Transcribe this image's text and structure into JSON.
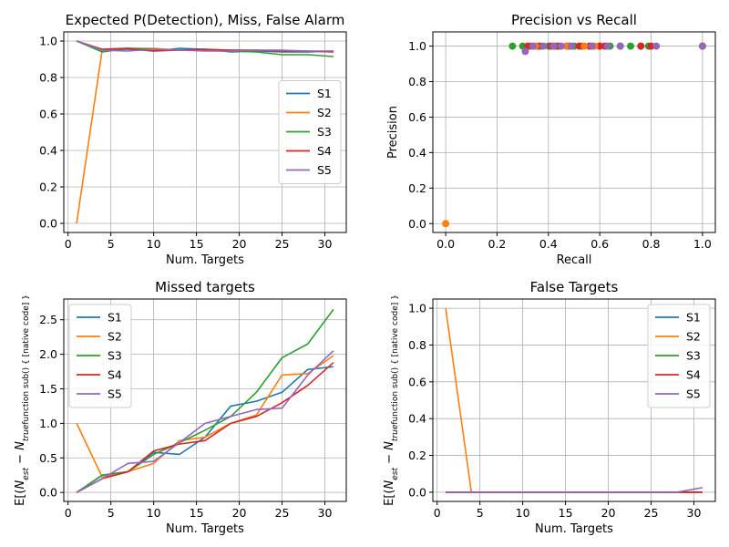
{
  "colors": {
    "S1": "#1f77b4",
    "S2": "#ff7f0e",
    "S3": "#2ca02c",
    "S4": "#d62728",
    "S5": "#9467bd",
    "grid": "#b0b0b0",
    "axis": "#000000"
  },
  "chart_data": [
    {
      "id": "detect",
      "type": "line",
      "title": "Expected P(Detection), Miss, False Alarm",
      "xlabel": "Num. Targets",
      "ylabel": "",
      "xlim": [
        -0.5,
        32.5
      ],
      "ylim": [
        -0.05,
        1.05
      ],
      "xticks": [
        0,
        5,
        10,
        15,
        20,
        25,
        30
      ],
      "yticks": [
        0.0,
        0.2,
        0.4,
        0.6,
        0.8,
        1.0
      ],
      "grid": true,
      "legend": "center right",
      "series": [
        {
          "name": "S1",
          "x": [
            1,
            4,
            7,
            10,
            13,
            16,
            19,
            22,
            25,
            28,
            31
          ],
          "y": [
            1.0,
            0.95,
            0.955,
            0.945,
            0.96,
            0.955,
            0.94,
            0.945,
            0.94,
            0.94,
            0.945
          ]
        },
        {
          "name": "S2",
          "x": [
            1,
            4,
            7,
            10,
            13,
            16,
            19,
            22,
            25,
            28,
            31
          ],
          "y": [
            0.0,
            0.955,
            0.96,
            0.96,
            0.95,
            0.95,
            0.95,
            0.95,
            0.945,
            0.945,
            0.94
          ]
        },
        {
          "name": "S3",
          "x": [
            1,
            4,
            7,
            10,
            13,
            16,
            19,
            22,
            25,
            28,
            31
          ],
          "y": [
            1.0,
            0.94,
            0.96,
            0.955,
            0.95,
            0.95,
            0.945,
            0.94,
            0.925,
            0.925,
            0.915
          ]
        },
        {
          "name": "S4",
          "x": [
            1,
            4,
            7,
            10,
            13,
            16,
            19,
            22,
            25,
            28,
            31
          ],
          "y": [
            1.0,
            0.955,
            0.96,
            0.945,
            0.95,
            0.955,
            0.95,
            0.95,
            0.945,
            0.945,
            0.94
          ]
        },
        {
          "name": "S5",
          "x": [
            1,
            4,
            7,
            10,
            13,
            16,
            19,
            22,
            25,
            28,
            31
          ],
          "y": [
            1.0,
            0.95,
            0.945,
            0.955,
            0.95,
            0.945,
            0.945,
            0.95,
            0.95,
            0.945,
            0.945
          ]
        }
      ]
    },
    {
      "id": "pr",
      "type": "scatter",
      "title": "Precision vs Recall",
      "xlabel": "Recall",
      "ylabel": "Precision",
      "xlim": [
        -0.05,
        1.05
      ],
      "ylim": [
        -0.05,
        1.08
      ],
      "xticks": [
        0.0,
        0.2,
        0.4,
        0.6,
        0.8,
        1.0
      ],
      "yticks": [
        0.0,
        0.2,
        0.4,
        0.6,
        0.8,
        1.0
      ],
      "grid": true,
      "legend": "none",
      "series": [
        {
          "name": "S3",
          "x": [
            1.0,
            0.26,
            0.3,
            0.33,
            0.37,
            0.4,
            0.43,
            0.47,
            0.5,
            0.53,
            0.57,
            0.6,
            0.64,
            0.68,
            0.72,
            0.76,
            0.79
          ],
          "y": [
            1,
            1,
            1,
            1,
            1,
            1,
            1,
            1,
            1,
            1,
            1,
            1,
            1,
            1,
            1,
            1,
            1
          ]
        },
        {
          "name": "S4",
          "x": [
            1.0,
            0.32,
            0.36,
            0.41,
            0.44,
            0.48,
            0.52,
            0.56,
            0.6,
            0.62,
            0.76,
            0.8
          ],
          "y": [
            1,
            1,
            1,
            1,
            1,
            1,
            1,
            1,
            1,
            1,
            1,
            1
          ]
        },
        {
          "name": "S2",
          "x": [
            0.0,
            1.0,
            0.35,
            0.42,
            0.47,
            0.54,
            0.58
          ],
          "y": [
            0.0,
            1,
            1,
            1,
            1,
            1,
            1
          ]
        },
        {
          "name": "S5",
          "x": [
            1.0,
            0.31,
            0.34,
            0.38,
            0.42,
            0.45,
            0.49,
            0.57,
            0.63,
            0.68,
            0.82
          ],
          "y": [
            1,
            0.97,
            1,
            1,
            1,
            1,
            1,
            1,
            1,
            1,
            1
          ]
        }
      ]
    },
    {
      "id": "missed",
      "type": "line",
      "title": "Missed targets",
      "xlabel": "Num. Targets",
      "ylabel": "E[(N_est - N_true)_-]",
      "xlim": [
        -0.5,
        32.5
      ],
      "ylim": [
        -0.13,
        2.8
      ],
      "xticks": [
        0,
        5,
        10,
        15,
        20,
        25,
        30
      ],
      "yticks": [
        0.0,
        0.5,
        1.0,
        1.5,
        2.0,
        2.5
      ],
      "ytick_labels": [
        "0.0",
        "0.5",
        "1.0",
        "1.5",
        "2.0",
        "2.5"
      ],
      "grid": true,
      "legend": "upper left",
      "series": [
        {
          "name": "S1",
          "x": [
            1,
            4,
            7,
            10,
            13,
            16,
            19,
            22,
            25,
            28,
            31
          ],
          "y": [
            0.0,
            0.25,
            0.3,
            0.58,
            0.55,
            0.8,
            1.25,
            1.32,
            1.45,
            1.78,
            1.82
          ]
        },
        {
          "name": "S2",
          "x": [
            1,
            4,
            7,
            10,
            13,
            16,
            19,
            22,
            25,
            28,
            31
          ],
          "y": [
            1.0,
            0.22,
            0.3,
            0.42,
            0.75,
            0.8,
            1.0,
            1.12,
            1.7,
            1.72,
            1.98
          ]
        },
        {
          "name": "S3",
          "x": [
            1,
            4,
            7,
            10,
            13,
            16,
            19,
            22,
            25,
            28,
            31
          ],
          "y": [
            0.0,
            0.25,
            0.3,
            0.55,
            0.72,
            0.9,
            1.1,
            1.45,
            1.95,
            2.15,
            2.65
          ]
        },
        {
          "name": "S4",
          "x": [
            1,
            4,
            7,
            10,
            13,
            16,
            19,
            22,
            25,
            28,
            31
          ],
          "y": [
            0.0,
            0.2,
            0.3,
            0.6,
            0.7,
            0.75,
            1.0,
            1.1,
            1.3,
            1.55,
            1.88
          ]
        },
        {
          "name": "S5",
          "x": [
            1,
            4,
            7,
            10,
            13,
            16,
            19,
            22,
            25,
            28,
            31
          ],
          "y": [
            0.0,
            0.2,
            0.42,
            0.45,
            0.72,
            1.0,
            1.1,
            1.2,
            1.22,
            1.7,
            2.05
          ]
        }
      ]
    },
    {
      "id": "false",
      "type": "line",
      "title": "False Targets",
      "xlabel": "Num. Targets",
      "ylabel": "E[(N_est - N_true)_+]",
      "xlim": [
        -0.5,
        32.5
      ],
      "ylim": [
        -0.05,
        1.05
      ],
      "xticks": [
        0,
        5,
        10,
        15,
        20,
        25,
        30
      ],
      "yticks": [
        0.0,
        0.2,
        0.4,
        0.6,
        0.8,
        1.0
      ],
      "grid": true,
      "legend": "upper right",
      "series": [
        {
          "name": "S1",
          "x": [
            1,
            4,
            7,
            10,
            13,
            16,
            19,
            22,
            25,
            28,
            31
          ],
          "y": [
            0,
            0,
            0,
            0,
            0,
            0,
            0,
            0,
            0,
            0,
            0
          ]
        },
        {
          "name": "S2",
          "x": [
            1,
            4,
            7,
            10,
            13,
            16,
            19,
            22,
            25,
            28,
            31
          ],
          "y": [
            1.0,
            0,
            0,
            0,
            0,
            0,
            0,
            0,
            0,
            0,
            0
          ]
        },
        {
          "name": "S3",
          "x": [
            1,
            4,
            7,
            10,
            13,
            16,
            19,
            22,
            25,
            28,
            31
          ],
          "y": [
            0,
            0,
            0,
            0,
            0,
            0,
            0,
            0,
            0,
            0,
            0
          ]
        },
        {
          "name": "S4",
          "x": [
            1,
            4,
            7,
            10,
            13,
            16,
            19,
            22,
            25,
            28,
            31
          ],
          "y": [
            0,
            0,
            0,
            0,
            0,
            0,
            0,
            0,
            0,
            0,
            0
          ]
        },
        {
          "name": "S5",
          "x": [
            1,
            4,
            7,
            10,
            13,
            16,
            19,
            22,
            25,
            28,
            31
          ],
          "y": [
            0,
            0,
            0,
            0,
            0,
            0,
            0,
            0,
            0,
            0,
            0.025
          ]
        }
      ]
    }
  ]
}
